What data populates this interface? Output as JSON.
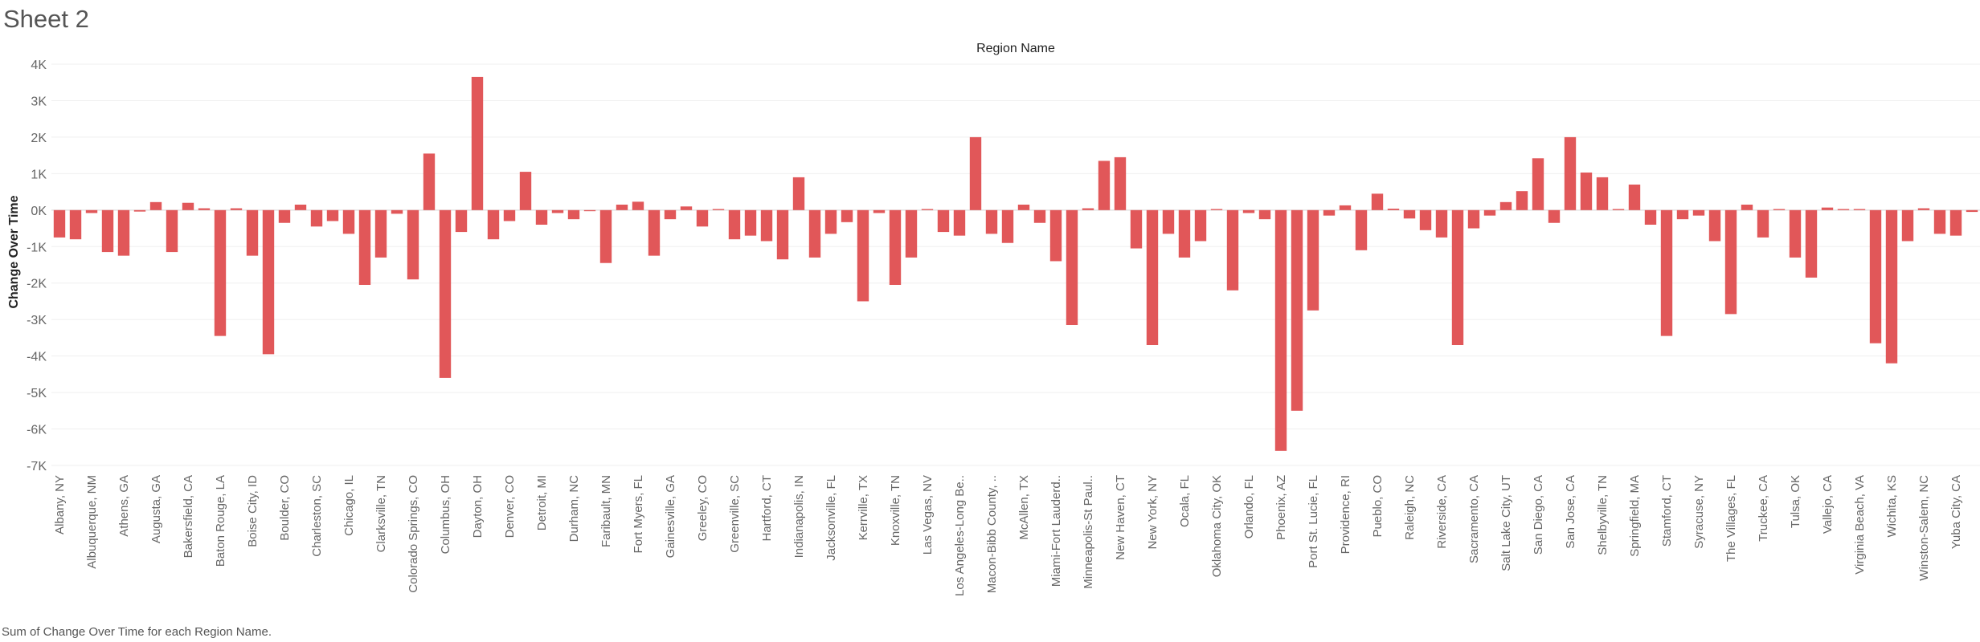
{
  "sheet": {
    "title": "Sheet 2",
    "caption": "Sum of Change Over Time for each Region Name."
  },
  "chart_data": {
    "type": "bar",
    "title": "Region Name",
    "xlabel": "",
    "ylabel": "Change Over Time",
    "ylim": [
      -7000,
      4000
    ],
    "yticks": [
      4000,
      3000,
      2000,
      1000,
      0,
      -1000,
      -2000,
      -3000,
      -4000,
      -5000,
      -6000,
      -7000
    ],
    "ytick_labels": [
      "4K",
      "3K",
      "2K",
      "1K",
      "0K",
      "-1K",
      "-2K",
      "-3K",
      "-4K",
      "-5K",
      "-6K",
      "-7K"
    ],
    "bar_color": "#e15759",
    "grid": true,
    "label_every": 2,
    "categories": [
      "Albany, NY",
      "",
      "Albuquerque, NM",
      "",
      "Athens, GA",
      "",
      "Augusta, GA",
      "",
      "Bakersfield, CA",
      "",
      "Baton Rouge, LA",
      "",
      "Boise City, ID",
      "",
      "Boulder, CO",
      "",
      "Charleston, SC",
      "",
      "Chicago, IL",
      "",
      "Clarksville, TN",
      "",
      "Colorado Springs, CO",
      "",
      "Columbus, OH",
      "",
      "Dayton, OH",
      "",
      "Denver, CO",
      "",
      "Detroit, MI",
      "",
      "Durham, NC",
      "",
      "Faribault, MN",
      "",
      "Fort Myers, FL",
      "",
      "Gainesville, GA",
      "",
      "Greeley, CO",
      "",
      "Greenville, SC",
      "",
      "Hartford, CT",
      "",
      "Indianapolis, IN",
      "",
      "Jacksonville, FL",
      "",
      "Kerrville, TX",
      "",
      "Knoxville, TN",
      "",
      "Las Vegas, NV",
      "",
      "Los Angeles-Long Be..",
      "",
      "Macon-Bibb County, ..",
      "",
      "McAllen, TX",
      "",
      "Miami-Fort Lauderd..",
      "",
      "Minneapolis-St Paul..",
      "",
      "New Haven, CT",
      "",
      "New York, NY",
      "",
      "Ocala, FL",
      "",
      "Oklahoma City, OK",
      "",
      "Orlando, FL",
      "",
      "Phoenix, AZ",
      "",
      "Port St. Lucie, FL",
      "",
      "Providence, RI",
      "",
      "Pueblo, CO",
      "",
      "Raleigh, NC",
      "",
      "Riverside, CA",
      "",
      "Sacramento, CA",
      "",
      "Salt Lake City, UT",
      "",
      "San Diego, CA",
      "",
      "San Jose, CA",
      "",
      "Shelbyville, TN",
      "",
      "Springfield, MA",
      "",
      "Stamford, CT",
      "",
      "Syracuse, NY",
      "",
      "The Villages, FL",
      "",
      "Truckee, CA",
      "",
      "Tulsa, OK",
      "",
      "Vallejo, CA",
      "",
      "Virginia Beach, VA",
      "",
      "Wichita, KS",
      "",
      "Winston-Salem, NC",
      "",
      "Yuba City, CA",
      ""
    ],
    "values": [
      -750,
      -800,
      -80,
      -1150,
      -1250,
      -40,
      220,
      -1150,
      200,
      50,
      -3450,
      50,
      -1250,
      -3950,
      -350,
      150,
      -450,
      -300,
      -650,
      -2050,
      -1300,
      -100,
      -1900,
      1550,
      -4600,
      -600,
      3650,
      -800,
      -300,
      1050,
      -400,
      -80,
      -250,
      -30,
      -1450,
      150,
      230,
      -1250,
      -250,
      100,
      -450,
      30,
      -800,
      -700,
      -850,
      -1350,
      900,
      -1300,
      -650,
      -330,
      -2500,
      -80,
      -2050,
      -1300,
      30,
      -600,
      -700,
      2000,
      -650,
      -900,
      150,
      -350,
      -1400,
      -3150,
      50,
      1350,
      1450,
      -1050,
      -3700,
      -650,
      -1300,
      -850,
      30,
      -2200,
      -80,
      -250,
      -6600,
      -5500,
      -2750,
      -150,
      130,
      -1100,
      450,
      40,
      -230,
      -550,
      -750,
      -3700,
      -500,
      -150,
      220,
      520,
      1420,
      -350,
      2000,
      1030,
      900,
      30,
      700,
      -400,
      -3450,
      -250,
      -150,
      -850,
      -2850,
      150,
      -750,
      30,
      -1300,
      -1850,
      70,
      30,
      30,
      -3650,
      -4200,
      -850,
      50,
      -650,
      -700,
      -50
    ]
  }
}
